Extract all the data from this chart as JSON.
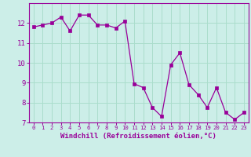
{
  "hours": [
    0,
    1,
    2,
    3,
    4,
    5,
    6,
    7,
    8,
    9,
    10,
    11,
    12,
    13,
    14,
    15,
    16,
    17,
    18,
    19,
    20,
    21,
    22,
    23
  ],
  "values": [
    11.8,
    11.9,
    12.0,
    12.3,
    11.6,
    12.4,
    12.4,
    11.9,
    11.9,
    11.75,
    12.1,
    8.95,
    8.75,
    7.75,
    7.3,
    9.9,
    10.5,
    8.9,
    8.4,
    7.75,
    8.75,
    7.5,
    7.15,
    7.5
  ],
  "line_color": "#990099",
  "marker_color": "#990099",
  "bg_color": "#cceee8",
  "grid_color": "#aaddcc",
  "xlabel": "Windchill (Refroidissement éolien,°C)",
  "xlabel_color": "#990099",
  "tick_color": "#990099",
  "spine_color": "#990099",
  "ylim": [
    7,
    13
  ],
  "xlim_min": -0.5,
  "xlim_max": 23.5,
  "yticks": [
    7,
    8,
    9,
    10,
    11,
    12
  ],
  "xticks": [
    0,
    1,
    2,
    3,
    4,
    5,
    6,
    7,
    8,
    9,
    10,
    11,
    12,
    13,
    14,
    15,
    16,
    17,
    18,
    19,
    20,
    21,
    22,
    23
  ],
  "xlabel_fontsize": 6.5,
  "xtick_fontsize": 5.2,
  "ytick_fontsize": 6.5
}
